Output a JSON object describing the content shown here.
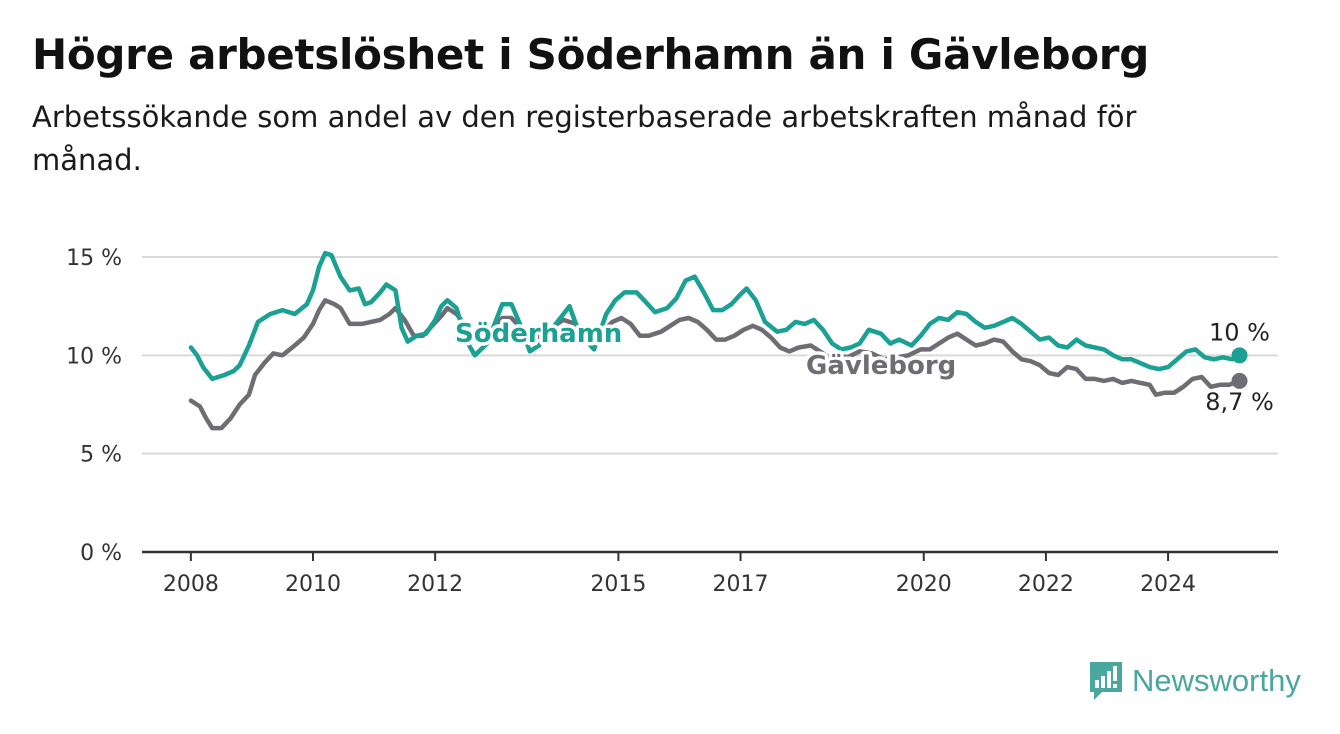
{
  "title": "Högre arbetslöshet i Söderhamn än i Gävleborg",
  "subtitle": "Arbetssökande som andel av den registerbaserade arbetskraften månad för månad.",
  "brand": "Newsworthy",
  "colors": {
    "soderhamn": "#1aa193",
    "gavleborg": "#6e6d73",
    "grid": "#d9d9d9",
    "axis": "#333333",
    "brand": "#4aa79f"
  },
  "chart_data": {
    "type": "line",
    "title": "Högre arbetslöshet i Söderhamn än i Gävleborg",
    "subtitle": "Arbetssökande som andel av den registerbaserade arbetskraften månad för månad.",
    "y_ticks": [
      "0 %",
      "5 %",
      "10 %",
      "15 %"
    ],
    "y_tick_values": [
      0,
      5,
      10,
      15
    ],
    "ylim": [
      0,
      15
    ],
    "x_ticks": [
      "2008",
      "2010",
      "2012",
      "2015",
      "2017",
      "2020",
      "2022",
      "2024"
    ],
    "x_tick_values": [
      2008,
      2010,
      2012,
      2015,
      2017,
      2020,
      2022,
      2024
    ],
    "xlim": [
      2007.2,
      2025.8
    ],
    "grid": true,
    "series": [
      {
        "name": "Söderhamn",
        "end_label": "10 %",
        "points": [
          [
            2008.0,
            10.4
          ],
          [
            2008.1,
            10.0
          ],
          [
            2008.2,
            9.4
          ],
          [
            2008.35,
            8.8
          ],
          [
            2008.55,
            9.0
          ],
          [
            2008.7,
            9.2
          ],
          [
            2008.8,
            9.5
          ],
          [
            2008.95,
            10.5
          ],
          [
            2009.1,
            11.7
          ],
          [
            2009.3,
            12.1
          ],
          [
            2009.5,
            12.3
          ],
          [
            2009.7,
            12.1
          ],
          [
            2009.9,
            12.6
          ],
          [
            2010.0,
            13.3
          ],
          [
            2010.1,
            14.5
          ],
          [
            2010.2,
            15.2
          ],
          [
            2010.3,
            15.1
          ],
          [
            2010.45,
            14.0
          ],
          [
            2010.6,
            13.3
          ],
          [
            2010.75,
            13.4
          ],
          [
            2010.85,
            12.6
          ],
          [
            2010.95,
            12.7
          ],
          [
            2011.1,
            13.2
          ],
          [
            2011.2,
            13.6
          ],
          [
            2011.35,
            13.3
          ],
          [
            2011.45,
            11.4
          ],
          [
            2011.55,
            10.7
          ],
          [
            2011.7,
            11.0
          ],
          [
            2011.85,
            11.1
          ],
          [
            2012.0,
            11.8
          ],
          [
            2012.1,
            12.5
          ],
          [
            2012.2,
            12.8
          ],
          [
            2012.35,
            12.4
          ],
          [
            2012.5,
            10.8
          ],
          [
            2012.65,
            10.0
          ],
          [
            2012.85,
            10.6
          ],
          [
            2013.0,
            11.8
          ],
          [
            2013.1,
            12.6
          ],
          [
            2013.25,
            12.6
          ],
          [
            2013.4,
            11.5
          ],
          [
            2013.55,
            10.2
          ],
          [
            2013.7,
            10.5
          ],
          [
            2013.9,
            11.3
          ],
          [
            2014.05,
            11.9
          ],
          [
            2014.2,
            12.5
          ],
          [
            2014.35,
            11.2
          ],
          [
            2014.6,
            10.3
          ],
          [
            2014.8,
            12.1
          ],
          [
            2014.95,
            12.8
          ],
          [
            2015.1,
            13.2
          ],
          [
            2015.3,
            13.2
          ],
          [
            2015.45,
            12.7
          ],
          [
            2015.6,
            12.2
          ],
          [
            2015.8,
            12.4
          ],
          [
            2015.95,
            12.9
          ],
          [
            2016.1,
            13.8
          ],
          [
            2016.25,
            14.0
          ],
          [
            2016.4,
            13.2
          ],
          [
            2016.55,
            12.3
          ],
          [
            2016.7,
            12.3
          ],
          [
            2016.85,
            12.6
          ],
          [
            2017.0,
            13.1
          ],
          [
            2017.1,
            13.4
          ],
          [
            2017.25,
            12.8
          ],
          [
            2017.4,
            11.7
          ],
          [
            2017.6,
            11.2
          ],
          [
            2017.75,
            11.3
          ],
          [
            2017.9,
            11.7
          ],
          [
            2018.05,
            11.6
          ],
          [
            2018.2,
            11.8
          ],
          [
            2018.35,
            11.3
          ],
          [
            2018.5,
            10.6
          ],
          [
            2018.65,
            10.3
          ],
          [
            2018.8,
            10.4
          ],
          [
            2018.95,
            10.6
          ],
          [
            2019.1,
            11.3
          ],
          [
            2019.3,
            11.1
          ],
          [
            2019.45,
            10.6
          ],
          [
            2019.6,
            10.8
          ],
          [
            2019.8,
            10.5
          ],
          [
            2019.95,
            11.0
          ],
          [
            2020.1,
            11.6
          ],
          [
            2020.25,
            11.9
          ],
          [
            2020.4,
            11.8
          ],
          [
            2020.55,
            12.2
          ],
          [
            2020.7,
            12.1
          ],
          [
            2020.85,
            11.7
          ],
          [
            2021.0,
            11.4
          ],
          [
            2021.15,
            11.5
          ],
          [
            2021.3,
            11.7
          ],
          [
            2021.45,
            11.9
          ],
          [
            2021.6,
            11.6
          ],
          [
            2021.75,
            11.2
          ],
          [
            2021.9,
            10.8
          ],
          [
            2022.05,
            10.9
          ],
          [
            2022.2,
            10.5
          ],
          [
            2022.35,
            10.4
          ],
          [
            2022.5,
            10.8
          ],
          [
            2022.65,
            10.5
          ],
          [
            2022.8,
            10.4
          ],
          [
            2022.95,
            10.3
          ],
          [
            2023.1,
            10.0
          ],
          [
            2023.25,
            9.8
          ],
          [
            2023.4,
            9.8
          ],
          [
            2023.55,
            9.6
          ],
          [
            2023.7,
            9.4
          ],
          [
            2023.85,
            9.3
          ],
          [
            2024.0,
            9.4
          ],
          [
            2024.15,
            9.8
          ],
          [
            2024.3,
            10.2
          ],
          [
            2024.45,
            10.3
          ],
          [
            2024.6,
            9.9
          ],
          [
            2024.75,
            9.8
          ],
          [
            2024.9,
            9.9
          ],
          [
            2025.05,
            9.8
          ],
          [
            2025.17,
            10.0
          ]
        ]
      },
      {
        "name": "Gävleborg",
        "end_label": "8,7 %",
        "points": [
          [
            2008.0,
            7.7
          ],
          [
            2008.15,
            7.4
          ],
          [
            2008.25,
            6.8
          ],
          [
            2008.35,
            6.3
          ],
          [
            2008.5,
            6.3
          ],
          [
            2008.65,
            6.8
          ],
          [
            2008.8,
            7.5
          ],
          [
            2008.95,
            8.0
          ],
          [
            2009.05,
            9.0
          ],
          [
            2009.2,
            9.6
          ],
          [
            2009.35,
            10.1
          ],
          [
            2009.5,
            10.0
          ],
          [
            2009.7,
            10.5
          ],
          [
            2009.85,
            10.9
          ],
          [
            2010.0,
            11.6
          ],
          [
            2010.1,
            12.3
          ],
          [
            2010.2,
            12.8
          ],
          [
            2010.35,
            12.6
          ],
          [
            2010.45,
            12.4
          ],
          [
            2010.6,
            11.6
          ],
          [
            2010.8,
            11.6
          ],
          [
            2010.95,
            11.7
          ],
          [
            2011.1,
            11.8
          ],
          [
            2011.25,
            12.1
          ],
          [
            2011.35,
            12.4
          ],
          [
            2011.5,
            11.8
          ],
          [
            2011.65,
            11.0
          ],
          [
            2011.8,
            11.0
          ],
          [
            2011.95,
            11.5
          ],
          [
            2012.1,
            12.0
          ],
          [
            2012.2,
            12.4
          ],
          [
            2012.35,
            12.1
          ],
          [
            2012.5,
            11.5
          ],
          [
            2012.65,
            10.8
          ],
          [
            2012.8,
            11.0
          ],
          [
            2012.95,
            11.4
          ],
          [
            2013.1,
            11.9
          ],
          [
            2013.25,
            11.9
          ],
          [
            2013.4,
            11.4
          ],
          [
            2013.6,
            10.9
          ],
          [
            2013.8,
            11.0
          ],
          [
            2013.95,
            11.5
          ],
          [
            2014.1,
            11.8
          ],
          [
            2014.3,
            11.6
          ],
          [
            2014.45,
            11.1
          ],
          [
            2014.6,
            10.8
          ],
          [
            2014.75,
            11.2
          ],
          [
            2014.9,
            11.7
          ],
          [
            2015.05,
            11.9
          ],
          [
            2015.2,
            11.6
          ],
          [
            2015.35,
            11.0
          ],
          [
            2015.5,
            11.0
          ],
          [
            2015.7,
            11.2
          ],
          [
            2015.85,
            11.5
          ],
          [
            2016.0,
            11.8
          ],
          [
            2016.15,
            11.9
          ],
          [
            2016.3,
            11.7
          ],
          [
            2016.45,
            11.3
          ],
          [
            2016.6,
            10.8
          ],
          [
            2016.75,
            10.8
          ],
          [
            2016.9,
            11.0
          ],
          [
            2017.05,
            11.3
          ],
          [
            2017.2,
            11.5
          ],
          [
            2017.35,
            11.3
          ],
          [
            2017.5,
            10.9
          ],
          [
            2017.65,
            10.4
          ],
          [
            2017.8,
            10.2
          ],
          [
            2017.95,
            10.4
          ],
          [
            2018.15,
            10.5
          ],
          [
            2018.3,
            10.2
          ],
          [
            2018.45,
            9.9
          ],
          [
            2018.6,
            10.0
          ],
          [
            2018.75,
            9.9
          ],
          [
            2018.95,
            10.2
          ],
          [
            2019.15,
            10.1
          ],
          [
            2019.35,
            9.8
          ],
          [
            2019.55,
            9.9
          ],
          [
            2019.75,
            10.0
          ],
          [
            2019.95,
            10.3
          ],
          [
            2020.1,
            10.3
          ],
          [
            2020.25,
            10.6
          ],
          [
            2020.4,
            10.9
          ],
          [
            2020.55,
            11.1
          ],
          [
            2020.7,
            10.8
          ],
          [
            2020.85,
            10.5
          ],
          [
            2021.0,
            10.6
          ],
          [
            2021.15,
            10.8
          ],
          [
            2021.3,
            10.7
          ],
          [
            2021.45,
            10.2
          ],
          [
            2021.6,
            9.8
          ],
          [
            2021.75,
            9.7
          ],
          [
            2021.9,
            9.5
          ],
          [
            2022.05,
            9.1
          ],
          [
            2022.2,
            9.0
          ],
          [
            2022.35,
            9.4
          ],
          [
            2022.5,
            9.3
          ],
          [
            2022.65,
            8.8
          ],
          [
            2022.8,
            8.8
          ],
          [
            2022.95,
            8.7
          ],
          [
            2023.1,
            8.8
          ],
          [
            2023.25,
            8.6
          ],
          [
            2023.4,
            8.7
          ],
          [
            2023.55,
            8.6
          ],
          [
            2023.7,
            8.5
          ],
          [
            2023.8,
            8.0
          ],
          [
            2023.95,
            8.1
          ],
          [
            2024.1,
            8.1
          ],
          [
            2024.25,
            8.4
          ],
          [
            2024.4,
            8.8
          ],
          [
            2024.55,
            8.9
          ],
          [
            2024.7,
            8.4
          ],
          [
            2024.85,
            8.5
          ],
          [
            2025.0,
            8.5
          ],
          [
            2025.17,
            8.7
          ]
        ]
      }
    ]
  }
}
